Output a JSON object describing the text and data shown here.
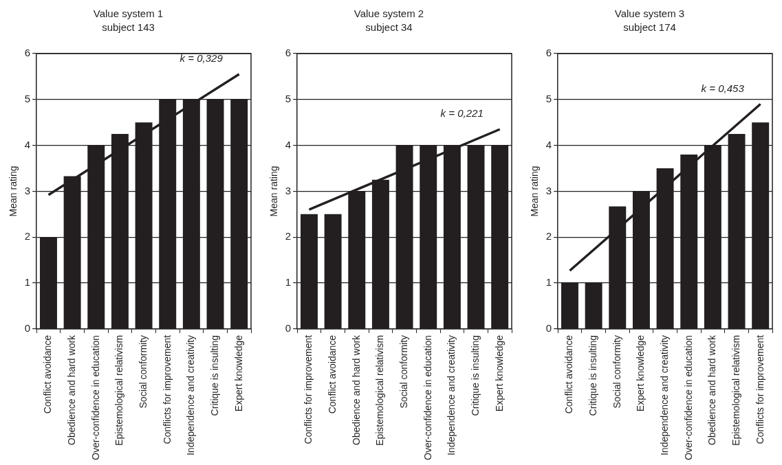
{
  "chart_data": [
    {
      "type": "bar",
      "title": "Value system 1",
      "subtitle": "subject 143",
      "ylabel": "Mean rating",
      "categories": [
        "Conflict avoidance",
        "Obedience and hard work",
        "Over-confidence in education",
        "Epistemological relativism",
        "Social conformity",
        "Conflicts for improvement",
        "Independence and creativity",
        "Critique is insulting",
        "Expert knowledge"
      ],
      "series": [
        {
          "color": "#231f20",
          "values": [
            2,
            3.33,
            4,
            4.25,
            4.5,
            5,
            5,
            5,
            5
          ]
        },
        {
          "type": "line",
          "color": "#231f20",
          "marker": "none",
          "x": [
            "Conflict avoidance",
            "Expert knowledge"
          ],
          "values": [
            2.92,
            5.55
          ]
        }
      ],
      "ylim": [
        0,
        6
      ],
      "yticks": [
        0,
        1,
        2,
        3,
        4,
        5,
        6
      ],
      "grid": "y",
      "legend": false,
      "annotations": [
        "k = 0,329"
      ]
    },
    {
      "type": "bar",
      "title": "Value system 2",
      "subtitle": "subject 34",
      "ylabel": "Mean rating",
      "categories": [
        "Conflicts for improvement",
        "Conflict avoidance",
        "Obedience and hard work",
        "Epistemological relativism",
        "Social conformity",
        "Over-confidence in education",
        "Independence and creativity",
        "Critique is insulting",
        "Expert knowledge"
      ],
      "series": [
        {
          "color": "#231f20",
          "values": [
            2.5,
            2.5,
            3,
            3.25,
            4,
            4,
            4,
            4,
            4
          ]
        },
        {
          "type": "line",
          "color": "#231f20",
          "marker": "none",
          "x": [
            "Conflicts for improvement",
            "Expert knowledge"
          ],
          "values": [
            2.6,
            4.35
          ]
        }
      ],
      "ylim": [
        0,
        6
      ],
      "yticks": [
        0,
        1,
        2,
        3,
        4,
        5,
        6
      ],
      "grid": "y",
      "legend": false,
      "annotations": [
        "k = 0,221"
      ]
    },
    {
      "type": "bar",
      "title": "Value system 3",
      "subtitle": "subject 174",
      "ylabel": "Mean rating",
      "categories": [
        "Conflict avoidance",
        "Critique is insulting",
        "Social conformity",
        "Expert knowledge",
        "Independence and creativity",
        "Over-confidence in education",
        "Obedience and hard work",
        "Epistemological relativism",
        "Conflicts for improvement"
      ],
      "series": [
        {
          "color": "#231f20",
          "values": [
            1,
            1,
            2.67,
            3,
            3.5,
            3.8,
            4,
            4.25,
            4.5
          ]
        },
        {
          "type": "line",
          "color": "#231f20",
          "marker": "none",
          "x": [
            "Conflict avoidance",
            "Conflicts for improvement"
          ],
          "values": [
            1.27,
            4.9
          ]
        }
      ],
      "ylim": [
        0,
        6
      ],
      "yticks": [
        0,
        1,
        2,
        3,
        4,
        5,
        6
      ],
      "grid": "y",
      "legend": false,
      "annotations": [
        "k = 0,453"
      ]
    }
  ]
}
